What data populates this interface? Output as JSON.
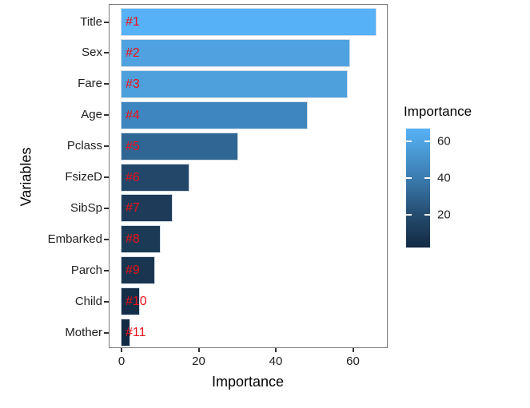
{
  "chart_data": {
    "type": "bar",
    "orientation": "horizontal",
    "xlabel": "Importance",
    "ylabel": "Variables",
    "categories": [
      "Title",
      "Sex",
      "Fare",
      "Age",
      "Pclass",
      "FsizeD",
      "SibSp",
      "Embarked",
      "Parch",
      "Child",
      "Mother"
    ],
    "values": [
      66,
      59,
      58.5,
      48,
      30,
      17.5,
      13,
      10,
      8.5,
      4.5,
      2
    ],
    "rank_labels": [
      "#1",
      "#2",
      "#3",
      "#4",
      "#5",
      "#6",
      "#7",
      "#8",
      "#9",
      "#10",
      "#11"
    ],
    "bar_colors": [
      "#56B1F7",
      "#4FA2DF",
      "#4EA0DC",
      "#3E86BF",
      "#2F6693",
      "#234769",
      "#1E3C59",
      "#1B3A55",
      "#193550",
      "#152E48",
      "#132B43"
    ],
    "rank_label_color": "#ec1118",
    "xticks": [
      "0",
      "20",
      "40",
      "60"
    ],
    "xtick_values": [
      0,
      20,
      40,
      60
    ],
    "xlim": [
      0,
      69
    ],
    "grid": false,
    "panel_border_color": "#7a7a7a",
    "legend": {
      "position": "right",
      "title": "Importance",
      "tick_labels": [
        "60",
        "40",
        "20"
      ],
      "tick_values": [
        60,
        40,
        20
      ],
      "range": [
        2,
        66.8
      ],
      "gradient_high": "#56B1F7",
      "gradient_low": "#132B43",
      "gradient_stops": [
        {
          "color": "#56B1F7",
          "pos": 0
        },
        {
          "color": "#50A5E3",
          "pos": 10.5
        },
        {
          "color": "#3B7CB0",
          "pos": 41.4
        },
        {
          "color": "#254C6F",
          "pos": 72.2
        },
        {
          "color": "#132B43",
          "pos": 100
        }
      ]
    }
  }
}
